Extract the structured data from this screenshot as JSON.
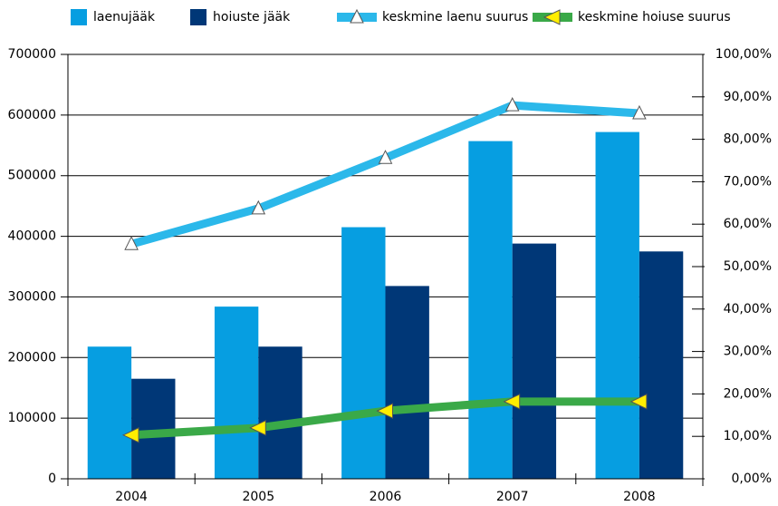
{
  "chart_data": {
    "type": "bar",
    "categories": [
      "2004",
      "2005",
      "2006",
      "2007",
      "2008"
    ],
    "series": [
      {
        "name": "laenujääk",
        "color": "#069ee1",
        "values": [
          218000,
          284000,
          415000,
          557000,
          572000
        ]
      },
      {
        "name": "hoiuste jääk",
        "color": "#003777",
        "values": [
          165000,
          218000,
          318000,
          388000,
          375000
        ]
      },
      {
        "name": "keskmine laenu suurus",
        "type": "line",
        "axis": "y2",
        "color": "#2bb8ea",
        "marker_color": "#ffffff",
        "marker": "triangle-up",
        "values": [
          55.3,
          63.7,
          75.6,
          88.0,
          86.1
        ]
      },
      {
        "name": "keskmine hoiuse suurus",
        "type": "line",
        "axis": "y2",
        "color": "#3aa948",
        "marker_color": "#ffee00",
        "marker": "triangle-left",
        "values": [
          10.3,
          12.0,
          16.0,
          18.2,
          18.2
        ]
      }
    ],
    "ylim": [
      0,
      700000
    ],
    "yticks": [
      0,
      100000,
      200000,
      300000,
      400000,
      500000,
      600000,
      700000
    ],
    "y2lim": [
      0,
      100
    ],
    "y2ticks": [
      {
        "value": 0,
        "label": "0,00%"
      },
      {
        "value": 10,
        "label": "10,00%"
      },
      {
        "value": 20,
        "label": "20,00%"
      },
      {
        "value": 30,
        "label": "30,00%"
      },
      {
        "value": 40,
        "label": "40,00%"
      },
      {
        "value": 50,
        "label": "50,00%"
      },
      {
        "value": 60,
        "label": "60,00%"
      },
      {
        "value": 70,
        "label": "70,00%"
      },
      {
        "value": 80,
        "label": "80,00%"
      },
      {
        "value": 90,
        "label": "90,00%"
      },
      {
        "value": 100,
        "label": "100,00%"
      }
    ],
    "grid": true,
    "legend": "top"
  }
}
